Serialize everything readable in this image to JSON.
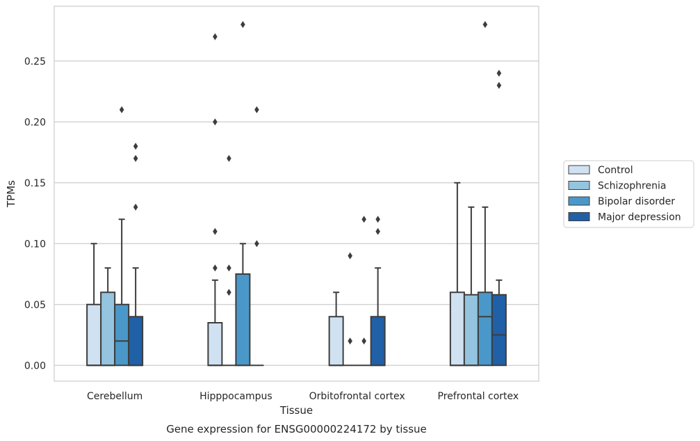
{
  "caption": "Gene expression for ENSG00000224172 by tissue",
  "chart_data": {
    "type": "box",
    "xlabel": "Tissue",
    "ylabel": "TPMs",
    "ylim": [
      -0.013,
      0.295
    ],
    "yticks": [
      "0.00",
      "0.05",
      "0.10",
      "0.15",
      "0.20",
      "0.25"
    ],
    "grid": true,
    "legend_position": "right",
    "categories": [
      "Cerebellum",
      "Hipppocampus",
      "Orbitofrontal cortex",
      "Prefrontal cortex"
    ],
    "series": [
      {
        "name": "Control",
        "color": "#d0e1f2",
        "boxes": [
          {
            "q1": 0.0,
            "median": 0.0,
            "q3": 0.05,
            "whisker_low": 0.0,
            "whisker_high": 0.1,
            "outliers": []
          },
          {
            "q1": 0.0,
            "median": 0.0,
            "q3": 0.035,
            "whisker_low": 0.0,
            "whisker_high": 0.07,
            "outliers": [
              0.27,
              0.2,
              0.11,
              0.08
            ]
          },
          {
            "q1": 0.0,
            "median": 0.0,
            "q3": 0.04,
            "whisker_low": 0.0,
            "whisker_high": 0.06,
            "outliers": []
          },
          {
            "q1": 0.0,
            "median": 0.0,
            "q3": 0.06,
            "whisker_low": 0.0,
            "whisker_high": 0.15,
            "outliers": []
          }
        ]
      },
      {
        "name": "Schizophrenia",
        "color": "#94c4df",
        "boxes": [
          {
            "q1": 0.0,
            "median": 0.0,
            "q3": 0.06,
            "whisker_low": 0.0,
            "whisker_high": 0.08,
            "outliers": []
          },
          {
            "q1": 0.0,
            "median": 0.0,
            "q3": 0.0,
            "whisker_low": 0.0,
            "whisker_high": 0.0,
            "outliers": [
              0.17,
              0.08,
              0.06
            ]
          },
          {
            "q1": 0.0,
            "median": 0.0,
            "q3": 0.0,
            "whisker_low": 0.0,
            "whisker_high": 0.0,
            "outliers": [
              0.09,
              0.02
            ]
          },
          {
            "q1": 0.0,
            "median": 0.0,
            "q3": 0.058,
            "whisker_low": 0.0,
            "whisker_high": 0.13,
            "outliers": []
          }
        ]
      },
      {
        "name": "Bipolar disorder",
        "color": "#4a98c9",
        "boxes": [
          {
            "q1": 0.0,
            "median": 0.02,
            "q3": 0.05,
            "whisker_low": 0.0,
            "whisker_high": 0.12,
            "outliers": [
              0.21
            ]
          },
          {
            "q1": 0.0,
            "median": 0.0,
            "q3": 0.075,
            "whisker_low": 0.0,
            "whisker_high": 0.1,
            "outliers": [
              0.28
            ]
          },
          {
            "q1": 0.0,
            "median": 0.0,
            "q3": 0.0,
            "whisker_low": 0.0,
            "whisker_high": 0.0,
            "outliers": [
              0.12,
              0.02
            ]
          },
          {
            "q1": 0.0,
            "median": 0.04,
            "q3": 0.06,
            "whisker_low": 0.0,
            "whisker_high": 0.13,
            "outliers": [
              0.28
            ]
          }
        ]
      },
      {
        "name": "Major depression",
        "color": "#2060a7",
        "boxes": [
          {
            "q1": 0.0,
            "median": 0.0,
            "q3": 0.04,
            "whisker_low": 0.0,
            "whisker_high": 0.08,
            "outliers": [
              0.18,
              0.17,
              0.13
            ]
          },
          {
            "q1": 0.0,
            "median": 0.0,
            "q3": 0.0,
            "whisker_low": 0.0,
            "whisker_high": 0.0,
            "outliers": [
              0.21,
              0.1
            ]
          },
          {
            "q1": 0.0,
            "median": 0.0,
            "q3": 0.04,
            "whisker_low": 0.0,
            "whisker_high": 0.08,
            "outliers": [
              0.12,
              0.11
            ]
          },
          {
            "q1": 0.0,
            "median": 0.025,
            "q3": 0.058,
            "whisker_low": 0.0,
            "whisker_high": 0.07,
            "outliers": [
              0.24,
              0.23
            ]
          }
        ]
      }
    ]
  }
}
